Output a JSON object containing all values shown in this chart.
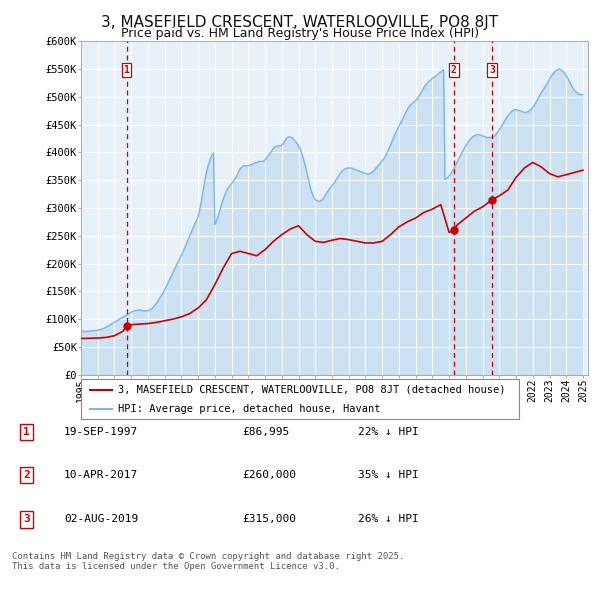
{
  "title": "3, MASEFIELD CRESCENT, WATERLOOVILLE, PO8 8JT",
  "subtitle": "Price paid vs. HM Land Registry's House Price Index (HPI)",
  "title_fontsize": 11,
  "subtitle_fontsize": 9,
  "hpi_color": "#7cb9e8",
  "price_color": "#cc0000",
  "background_color": "#ffffff",
  "plot_bg_color": "#e8f0f8",
  "grid_color": "#ffffff",
  "ylim": [
    0,
    600000
  ],
  "yticks": [
    0,
    50000,
    100000,
    150000,
    200000,
    250000,
    300000,
    350000,
    400000,
    450000,
    500000,
    550000,
    600000
  ],
  "ytick_labels": [
    "£0",
    "£50K",
    "£100K",
    "£150K",
    "£200K",
    "£250K",
    "£300K",
    "£350K",
    "£400K",
    "£450K",
    "£500K",
    "£550K",
    "£600K"
  ],
  "legend_label_price": "3, MASEFIELD CRESCENT, WATERLOOVILLE, PO8 8JT (detached house)",
  "legend_label_hpi": "HPI: Average price, detached house, Havant",
  "table_entries": [
    {
      "num": "1",
      "date": "19-SEP-1997",
      "price": "£86,995",
      "pct": "22% ↓ HPI"
    },
    {
      "num": "2",
      "date": "10-APR-2017",
      "price": "£260,000",
      "pct": "35% ↓ HPI"
    },
    {
      "num": "3",
      "date": "02-AUG-2019",
      "price": "£315,000",
      "pct": "26% ↓ HPI"
    }
  ],
  "footnote": "Contains HM Land Registry data © Crown copyright and database right 2025.\nThis data is licensed under the Open Government Licence v3.0.",
  "sale_markers": [
    {
      "year": 1997.72,
      "price": 86995,
      "label": "1"
    },
    {
      "year": 2017.27,
      "price": 260000,
      "label": "2"
    },
    {
      "year": 2019.58,
      "price": 315000,
      "label": "3"
    }
  ],
  "hpi_years": [
    1995.0,
    1995.083,
    1995.167,
    1995.25,
    1995.333,
    1995.417,
    1995.5,
    1995.583,
    1995.667,
    1995.75,
    1995.833,
    1995.917,
    1996.0,
    1996.083,
    1996.167,
    1996.25,
    1996.333,
    1996.417,
    1996.5,
    1996.583,
    1996.667,
    1996.75,
    1996.833,
    1996.917,
    1997.0,
    1997.083,
    1997.167,
    1997.25,
    1997.333,
    1997.417,
    1997.5,
    1997.583,
    1997.667,
    1997.75,
    1997.833,
    1997.917,
    1998.0,
    1998.083,
    1998.167,
    1998.25,
    1998.333,
    1998.417,
    1998.5,
    1998.583,
    1998.667,
    1998.75,
    1998.833,
    1998.917,
    1999.0,
    1999.083,
    1999.167,
    1999.25,
    1999.333,
    1999.417,
    1999.5,
    1999.583,
    1999.667,
    1999.75,
    1999.833,
    1999.917,
    2000.0,
    2000.083,
    2000.167,
    2000.25,
    2000.333,
    2000.417,
    2000.5,
    2000.583,
    2000.667,
    2000.75,
    2000.833,
    2000.917,
    2001.0,
    2001.083,
    2001.167,
    2001.25,
    2001.333,
    2001.417,
    2001.5,
    2001.583,
    2001.667,
    2001.75,
    2001.833,
    2001.917,
    2002.0,
    2002.083,
    2002.167,
    2002.25,
    2002.333,
    2002.417,
    2002.5,
    2002.583,
    2002.667,
    2002.75,
    2002.833,
    2002.917,
    2003.0,
    2003.083,
    2003.167,
    2003.25,
    2003.333,
    2003.417,
    2003.5,
    2003.583,
    2003.667,
    2003.75,
    2003.833,
    2003.917,
    2004.0,
    2004.083,
    2004.167,
    2004.25,
    2004.333,
    2004.417,
    2004.5,
    2004.583,
    2004.667,
    2004.75,
    2004.833,
    2004.917,
    2005.0,
    2005.083,
    2005.167,
    2005.25,
    2005.333,
    2005.417,
    2005.5,
    2005.583,
    2005.667,
    2005.75,
    2005.833,
    2005.917,
    2006.0,
    2006.083,
    2006.167,
    2006.25,
    2006.333,
    2006.417,
    2006.5,
    2006.583,
    2006.667,
    2006.75,
    2006.833,
    2006.917,
    2007.0,
    2007.083,
    2007.167,
    2007.25,
    2007.333,
    2007.417,
    2007.5,
    2007.583,
    2007.667,
    2007.75,
    2007.833,
    2007.917,
    2008.0,
    2008.083,
    2008.167,
    2008.25,
    2008.333,
    2008.417,
    2008.5,
    2008.583,
    2008.667,
    2008.75,
    2008.833,
    2008.917,
    2009.0,
    2009.083,
    2009.167,
    2009.25,
    2009.333,
    2009.417,
    2009.5,
    2009.583,
    2009.667,
    2009.75,
    2009.833,
    2009.917,
    2010.0,
    2010.083,
    2010.167,
    2010.25,
    2010.333,
    2010.417,
    2010.5,
    2010.583,
    2010.667,
    2010.75,
    2010.833,
    2010.917,
    2011.0,
    2011.083,
    2011.167,
    2011.25,
    2011.333,
    2011.417,
    2011.5,
    2011.583,
    2011.667,
    2011.75,
    2011.833,
    2011.917,
    2012.0,
    2012.083,
    2012.167,
    2012.25,
    2012.333,
    2012.417,
    2012.5,
    2012.583,
    2012.667,
    2012.75,
    2012.833,
    2012.917,
    2013.0,
    2013.083,
    2013.167,
    2013.25,
    2013.333,
    2013.417,
    2013.5,
    2013.583,
    2013.667,
    2013.75,
    2013.833,
    2013.917,
    2014.0,
    2014.083,
    2014.167,
    2014.25,
    2014.333,
    2014.417,
    2014.5,
    2014.583,
    2014.667,
    2014.75,
    2014.833,
    2014.917,
    2015.0,
    2015.083,
    2015.167,
    2015.25,
    2015.333,
    2015.417,
    2015.5,
    2015.583,
    2015.667,
    2015.75,
    2015.833,
    2015.917,
    2016.0,
    2016.083,
    2016.167,
    2016.25,
    2016.333,
    2016.417,
    2016.5,
    2016.583,
    2016.667,
    2016.75,
    2016.833,
    2016.917,
    2017.0,
    2017.083,
    2017.167,
    2017.25,
    2017.333,
    2017.417,
    2017.5,
    2017.583,
    2017.667,
    2017.75,
    2017.833,
    2017.917,
    2018.0,
    2018.083,
    2018.167,
    2018.25,
    2018.333,
    2018.417,
    2018.5,
    2018.583,
    2018.667,
    2018.75,
    2018.833,
    2018.917,
    2019.0,
    2019.083,
    2019.167,
    2019.25,
    2019.333,
    2019.417,
    2019.5,
    2019.583,
    2019.667,
    2019.75,
    2019.833,
    2019.917,
    2020.0,
    2020.083,
    2020.167,
    2020.25,
    2020.333,
    2020.417,
    2020.5,
    2020.583,
    2020.667,
    2020.75,
    2020.833,
    2020.917,
    2021.0,
    2021.083,
    2021.167,
    2021.25,
    2021.333,
    2021.417,
    2021.5,
    2021.583,
    2021.667,
    2021.75,
    2021.833,
    2021.917,
    2022.0,
    2022.083,
    2022.167,
    2022.25,
    2022.333,
    2022.417,
    2022.5,
    2022.583,
    2022.667,
    2022.75,
    2022.833,
    2022.917,
    2023.0,
    2023.083,
    2023.167,
    2023.25,
    2023.333,
    2023.417,
    2023.5,
    2023.583,
    2023.667,
    2023.75,
    2023.833,
    2023.917,
    2024.0,
    2024.083,
    2024.167,
    2024.25,
    2024.333,
    2024.417,
    2024.5,
    2024.583,
    2024.667,
    2024.75,
    2024.833,
    2024.917,
    2025.0
  ],
  "hpi_vals": [
    79000,
    78500,
    78000,
    77800,
    77500,
    77800,
    78200,
    78600,
    79000,
    79200,
    79500,
    79800,
    80200,
    80600,
    81200,
    82000,
    83000,
    84200,
    85500,
    87000,
    88500,
    90000,
    91500,
    93000,
    94500,
    96000,
    97500,
    99000,
    100500,
    102000,
    103500,
    105000,
    106500,
    108000,
    109500,
    111000,
    112500,
    113500,
    114500,
    115000,
    115500,
    116000,
    116500,
    116000,
    115500,
    115000,
    114800,
    114600,
    115000,
    116000,
    117500,
    119500,
    122000,
    125000,
    128500,
    132000,
    136000,
    140000,
    144000,
    148500,
    153000,
    158000,
    163000,
    168000,
    173000,
    178500,
    184000,
    189500,
    195000,
    200000,
    205000,
    210000,
    215000,
    220000,
    226000,
    232000,
    238000,
    244000,
    250000,
    256000,
    262000,
    268000,
    273000,
    278000,
    285000,
    295000,
    308000,
    322000,
    337000,
    352000,
    365000,
    375000,
    383000,
    390000,
    395000,
    399000,
    270000,
    276000,
    283000,
    291000,
    299000,
    308000,
    316000,
    323000,
    329000,
    334000,
    338000,
    341000,
    344000,
    347000,
    351000,
    355000,
    360000,
    365000,
    370000,
    373000,
    375000,
    376000,
    376000,
    376000,
    376000,
    377000,
    378000,
    379000,
    380000,
    381000,
    382000,
    383000,
    384000,
    384000,
    384000,
    384000,
    387000,
    390000,
    393000,
    397000,
    400000,
    404000,
    407000,
    410000,
    411000,
    412000,
    412000,
    412000,
    413000,
    416000,
    420000,
    424000,
    427000,
    428000,
    428000,
    427000,
    425000,
    422000,
    419000,
    416000,
    412000,
    407000,
    401000,
    393000,
    384000,
    374000,
    363000,
    352000,
    341000,
    332000,
    325000,
    319000,
    315000,
    313000,
    312000,
    312000,
    313000,
    315000,
    318000,
    322000,
    326000,
    330000,
    334000,
    337000,
    340000,
    343000,
    347000,
    351000,
    355000,
    359000,
    363000,
    366000,
    368000,
    370000,
    371000,
    372000,
    372000,
    372000,
    372000,
    371000,
    370000,
    369000,
    368000,
    367000,
    366000,
    365000,
    364000,
    363000,
    362000,
    361000,
    361000,
    362000,
    363000,
    365000,
    367000,
    370000,
    373000,
    376000,
    379000,
    382000,
    385000,
    388000,
    392000,
    397000,
    402000,
    408000,
    414000,
    420000,
    426000,
    432000,
    437000,
    442000,
    447000,
    452000,
    457000,
    462000,
    467000,
    472000,
    477000,
    482000,
    485000,
    487000,
    489000,
    491000,
    493000,
    496000,
    500000,
    504000,
    508000,
    513000,
    517000,
    521000,
    524000,
    527000,
    529000,
    531000,
    533000,
    535000,
    537000,
    539000,
    541000,
    543000,
    545000,
    547000,
    549000,
    351000,
    353000,
    355000,
    358000,
    361000,
    365000,
    369000,
    374000,
    379000,
    384000,
    389000,
    394000,
    399000,
    404000,
    408000,
    412000,
    416000,
    420000,
    423000,
    426000,
    428000,
    430000,
    431000,
    432000,
    432000,
    432000,
    431000,
    430000,
    429000,
    428000,
    427000,
    427000,
    427000,
    427000,
    428000,
    429000,
    431000,
    434000,
    437000,
    441000,
    445000,
    449000,
    453000,
    458000,
    462000,
    466000,
    469000,
    472000,
    474000,
    476000,
    477000,
    477000,
    476000,
    476000,
    475000,
    474000,
    473000,
    472000,
    472000,
    473000,
    474000,
    476000,
    478000,
    481000,
    485000,
    489000,
    494000,
    498000,
    503000,
    507000,
    511000,
    515000,
    519000,
    523000,
    527000,
    532000,
    536000,
    540000,
    543000,
    546000,
    548000,
    549000,
    550000,
    549000,
    547000,
    545000,
    542000,
    538000,
    534000,
    529000,
    524000,
    519000,
    515000,
    511000,
    509000,
    507000,
    505000,
    504000,
    504000,
    504000,
    505000,
    506000,
    508000,
    510000,
    512000,
    514000,
    516000,
    517000,
    518000,
    519000,
    520000,
    521000,
    522000,
    523000,
    524000,
    525000,
    526000,
    527000,
    527000,
    528000,
    528000,
    529000,
    530000,
    531000,
    532000,
    533000,
    534000,
    535000,
    536000,
    537000,
    537000,
    537000,
    537000
  ],
  "price_years": [
    1995.0,
    1995.5,
    1996.0,
    1996.5,
    1997.0,
    1997.5,
    1997.72,
    1998.0,
    1998.5,
    1999.0,
    1999.5,
    2000.0,
    2000.5,
    2001.0,
    2001.5,
    2002.0,
    2002.5,
    2003.0,
    2003.5,
    2004.0,
    2004.5,
    2005.0,
    2005.5,
    2006.0,
    2006.5,
    2007.0,
    2007.5,
    2008.0,
    2008.5,
    2009.0,
    2009.5,
    2010.0,
    2010.5,
    2011.0,
    2011.5,
    2012.0,
    2012.5,
    2013.0,
    2013.5,
    2014.0,
    2014.5,
    2015.0,
    2015.5,
    2016.0,
    2016.5,
    2017.0,
    2017.27,
    2017.5,
    2018.0,
    2018.5,
    2019.0,
    2019.58,
    2020.0,
    2020.5,
    2021.0,
    2021.5,
    2022.0,
    2022.5,
    2023.0,
    2023.5,
    2024.0,
    2024.5,
    2025.0
  ],
  "price_vals": [
    65000,
    65500,
    66000,
    67000,
    70000,
    78000,
    86995,
    90000,
    91000,
    92000,
    94000,
    97000,
    100000,
    104000,
    110000,
    120000,
    135000,
    162000,
    192000,
    218000,
    222000,
    218000,
    214000,
    225000,
    240000,
    252000,
    262000,
    268000,
    252000,
    240000,
    238000,
    242000,
    245000,
    243000,
    240000,
    237000,
    237000,
    240000,
    252000,
    266000,
    275000,
    282000,
    292000,
    298000,
    306000,
    256000,
    260000,
    270000,
    282000,
    294000,
    302000,
    315000,
    322000,
    332000,
    355000,
    372000,
    382000,
    374000,
    362000,
    356000,
    360000,
    364000,
    368000
  ]
}
